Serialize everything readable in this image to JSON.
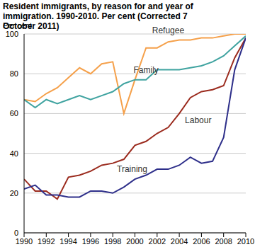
{
  "chart_data": {
    "type": "line",
    "title": "Resident immigrants, by reason for and year of immigration. 1990-2010. Per cent (Corrected 7 October 2011)",
    "y_label": "Per cent",
    "x": [
      1990,
      1991,
      1992,
      1993,
      1994,
      1995,
      1996,
      1997,
      1998,
      1999,
      2000,
      2001,
      2002,
      2003,
      2004,
      2005,
      2006,
      2007,
      2008,
      2009,
      2010
    ],
    "xlim": [
      1990,
      2010
    ],
    "xticks": [
      1990,
      1992,
      1994,
      1996,
      1998,
      2000,
      2002,
      2004,
      2006,
      2008,
      2010
    ],
    "ylim": [
      0,
      100
    ],
    "yticks": [
      0,
      20,
      40,
      60,
      80,
      100
    ],
    "grid": true,
    "series": [
      {
        "name": "Refugee",
        "color": "#f5a04a",
        "values": [
          67,
          66,
          70,
          73,
          78,
          83,
          80,
          85,
          86,
          60,
          77,
          93,
          93,
          96,
          97,
          97,
          98,
          98,
          99,
          100,
          100
        ]
      },
      {
        "name": "Family",
        "color": "#3fa3a0",
        "values": [
          67,
          63,
          67,
          65,
          67,
          69,
          67,
          69,
          71,
          75,
          77,
          77,
          82,
          82,
          82,
          83,
          84,
          86,
          89,
          94,
          99
        ]
      },
      {
        "name": "Labour",
        "color": "#9b2b1e",
        "values": [
          27,
          21,
          21,
          17,
          28,
          29,
          31,
          34,
          35,
          37,
          44,
          46,
          50,
          53,
          60,
          68,
          71,
          72,
          74,
          88,
          98
        ]
      },
      {
        "name": "Training",
        "color": "#2e2f8a",
        "values": [
          22,
          24,
          19,
          19,
          18,
          18,
          21,
          21,
          20,
          23,
          27,
          29,
          32,
          32,
          34,
          38,
          35,
          36,
          48,
          82,
          98
        ]
      }
    ]
  }
}
